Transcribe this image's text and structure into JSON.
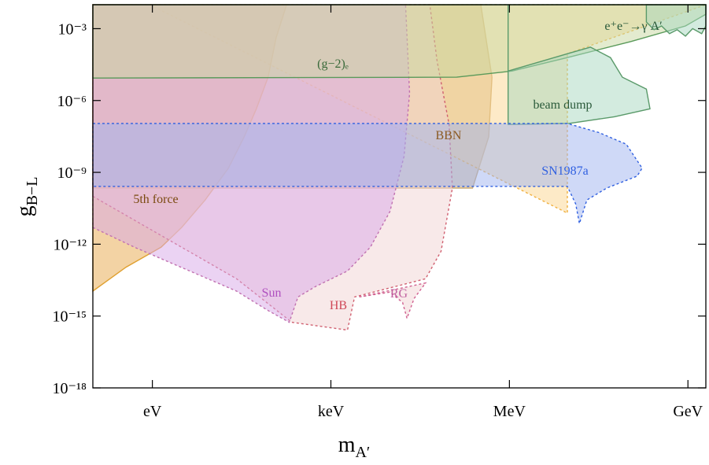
{
  "chart_data": {
    "type": "region",
    "xlog": true,
    "ylog": true,
    "xlim": [
      0.1,
      2000000000.0
    ],
    "ylim": [
      1e-18,
      0.01
    ],
    "xticks": [
      {
        "value": 1,
        "label": "eV"
      },
      {
        "value": 1000,
        "label": "keV"
      },
      {
        "value": 1000000,
        "label": "MeV"
      },
      {
        "value": 1000000000,
        "label": "GeV"
      }
    ],
    "yticks": [
      {
        "value": 0.001,
        "label": "10⁻³"
      },
      {
        "value": 1e-06,
        "label": "10⁻⁶"
      },
      {
        "value": 1e-09,
        "label": "10⁻⁹"
      },
      {
        "value": 1e-12,
        "label": "10⁻¹²"
      },
      {
        "value": 1e-15,
        "label": "10⁻¹⁵"
      },
      {
        "value": 1e-18,
        "label": "10⁻¹⁸"
      }
    ],
    "xlabel": {
      "text": "m",
      "sub": "A′"
    },
    "ylabel": {
      "text": "g",
      "sub": "B−L"
    },
    "series": [
      {
        "name": "BBN",
        "color": "#caa870",
        "stroke": "#caa870",
        "text_color": "#8b5a22",
        "x": [
          0.1,
          330000.0,
          510000.0,
          450000.0,
          240000.0,
          0.1
        ],
        "values": [
          0.01,
          0.01,
          9.4e-06,
          3.1e-08,
          2.2e-10,
          2.2e-10
        ]
      },
      {
        "color": "#fbd690",
        "stroke": "#f0b040",
        "dashed": true,
        "x": [
          0.9,
          9400000.0,
          9400000.0,
          2000000000.0
        ],
        "values": [
          0.01,
          2e-11,
          9e-05,
          0.01
        ]
      },
      {
        "name": "5th force",
        "color": "#e8a84a",
        "stroke": "#e0a030",
        "text_color": "#7a4a10",
        "x": [
          0.1,
          0.36,
          1.4,
          3.1,
          7.7,
          19,
          35,
          56,
          88,
          120,
          180,
          0.1
        ],
        "values": [
          1.1e-14,
          1.1e-13,
          7.5e-13,
          5e-12,
          7e-11,
          1.5e-09,
          3.1e-08,
          4.5e-07,
          9.4e-06,
          0.00042,
          0.01,
          0.01
        ]
      },
      {
        "name": "HB",
        "color": "#f2d4d4",
        "stroke": "#d06070",
        "dashed": true,
        "text_color": "#d04858",
        "x": [
          0.1,
          26,
          220,
          1900,
          2500,
          39000.0,
          71000.0,
          110000.0,
          97000.0,
          61000.0,
          46000.0,
          0.1
        ],
        "values": [
          1e-10,
          3.6e-14,
          5.5e-16,
          2.6e-16,
          6.3e-15,
          3.6e-14,
          5.1e-13,
          2.2e-10,
          1e-07,
          4.3e-05,
          0.01,
          0.01
        ]
      },
      {
        "name": "Sun",
        "color": "#d8a8e8",
        "stroke": "#c070b0",
        "dashed": true,
        "text_color": "#b050c0",
        "x": [
          0.1,
          0.5,
          26,
          88,
          200,
          280,
          550,
          1900,
          4600,
          9800,
          17000.0,
          21000.0,
          18000.0,
          0.1
        ],
        "values": [
          5e-12,
          7.5e-13,
          1.1e-14,
          1.7e-15,
          5.5e-16,
          6.3e-15,
          1.7e-14,
          7.6e-14,
          7.5e-13,
          2.3e-11,
          4.7e-09,
          2e-06,
          0.01,
          0.01
        ]
      },
      {
        "name": "RG",
        "color": "#f2d4d4",
        "stroke": "#d06090",
        "dashed": true,
        "text_color": "#c060a0",
        "x": [
          3000,
          9800,
          16000.0,
          19000.0,
          25000.0,
          39000.0
        ],
        "values": [
          6.3e-15,
          1e-14,
          3.7e-15,
          8e-16,
          5.4e-15,
          2.4e-14
        ]
      },
      {
        "name": "(g−2)ₑ",
        "color": "#c8d8a0",
        "stroke": "#5a9a5a",
        "text_color": "#3a6a3a",
        "x": [
          0.1,
          130000.0,
          1100000.0,
          9400000.0,
          110000000.0,
          910000000.0,
          2000000000.0,
          2000000000.0,
          0.1
        ],
        "values": [
          8.7e-06,
          9.4e-06,
          1.7e-05,
          6.2e-05,
          0.00029,
          0.0013,
          0.004,
          0.01,
          0.01
        ]
      },
      {
        "name": "beam dump",
        "color": "#a8d8c0",
        "stroke": "#5a9a6a",
        "text_color": "#2a5a3a",
        "x": [
          950000.0,
          10000000.0,
          58000000.0,
          230000000.0,
          200000000.0,
          79000000.0,
          50000000.0,
          23000000.0,
          9400000.0,
          950000.0,
          950000.0
        ],
        "values": [
          1e-07,
          1.1e-07,
          2.1e-07,
          4.5e-07,
          3e-06,
          9.4e-06,
          6.2e-05,
          0.00017,
          9e-05,
          1.7e-05,
          0.01
        ]
      },
      {
        "name": "e⁺e⁻→γ A′",
        "color": "#a8d8c0",
        "stroke": "#5a9a6a",
        "text_color": "#2a5a3a",
        "x": [
          200000000.0,
          200000000.0,
          270000000.0,
          360000000.0,
          490000000.0,
          660000000.0,
          910000000.0,
          1200000000.0,
          1700000000.0,
          2000000000.0,
          2000000000.0
        ],
        "values": [
          0.01,
          0.0019,
          0.0009,
          0.0013,
          0.00062,
          0.0009,
          0.00049,
          0.001,
          0.00062,
          0.0013,
          0.01
        ]
      },
      {
        "name": "SN1987a",
        "color": "#a0b4f0",
        "stroke": "#3060e0",
        "dashed": true,
        "text_color": "#3060e0",
        "x": [
          0.1,
          9400000.0,
          32000000.0,
          92000000.0,
          170000000.0,
          140000000.0,
          43000000.0,
          20000000.0,
          15000000.0,
          13000000.0,
          9400000.0,
          0.1
        ],
        "values": [
          1.1e-07,
          1.1e-07,
          4.6e-08,
          1.5e-08,
          1.5e-09,
          7e-10,
          2.2e-10,
          7e-11,
          7.3e-12,
          4.8e-11,
          2.6e-10,
          2.6e-10
        ]
      }
    ]
  }
}
